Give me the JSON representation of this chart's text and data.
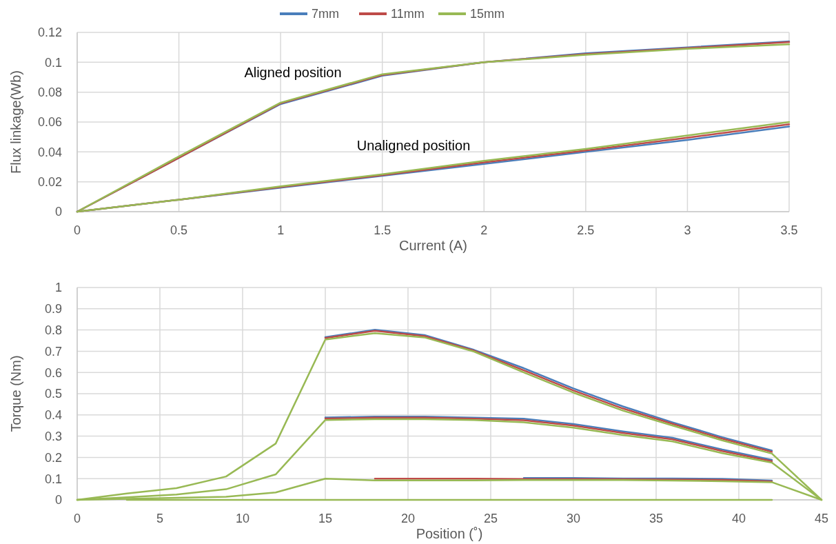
{
  "chart_data": [
    {
      "type": "line",
      "xlabel": "Current (A)",
      "ylabel": "Flux linkage(Wb)",
      "x": [
        0,
        0.5,
        1,
        1.5,
        2,
        2.5,
        3,
        3.5
      ],
      "xlim": [
        0,
        3.5
      ],
      "xticks": [
        0,
        0.5,
        1,
        1.5,
        2,
        2.5,
        3,
        3.5
      ],
      "ylim": [
        0,
        0.12
      ],
      "yticks": [
        0,
        0.02,
        0.04,
        0.06,
        0.08,
        0.1,
        0.12
      ],
      "grid": true,
      "legend": "top",
      "marker": "none",
      "line_style": "solid",
      "annotations": [
        "Aligned position",
        "Unaligned position"
      ],
      "series": [
        {
          "name": "7mm",
          "color": "#4a7ebb",
          "values": [
            0,
            0.036,
            0.072,
            0.091,
            0.1,
            0.106,
            0.11,
            0.114
          ]
        },
        {
          "name": "11mm",
          "color": "#be4b48",
          "values": [
            0,
            0.036,
            0.0725,
            0.0915,
            0.1,
            0.1055,
            0.1095,
            0.1135
          ]
        },
        {
          "name": "15mm",
          "color": "#98b954",
          "values": [
            0,
            0.037,
            0.073,
            0.092,
            0.1,
            0.105,
            0.109,
            0.112
          ]
        },
        {
          "color": "#4a7ebb",
          "values": [
            0,
            0.008,
            0.016,
            0.024,
            0.032,
            0.04,
            0.048,
            0.057
          ]
        },
        {
          "color": "#be4b48",
          "values": [
            0,
            0.008,
            0.0165,
            0.0245,
            0.033,
            0.041,
            0.0495,
            0.0585
          ]
        },
        {
          "color": "#98b954",
          "values": [
            0,
            0.008,
            0.017,
            0.025,
            0.034,
            0.042,
            0.051,
            0.06
          ]
        }
      ]
    },
    {
      "type": "line",
      "xlabel": "Position (˚)",
      "ylabel": "Torque (Nm)",
      "x": [
        0,
        3,
        6,
        9,
        12,
        15,
        18,
        21,
        24,
        27,
        30,
        33,
        36,
        39,
        42,
        45
      ],
      "xlim": [
        0,
        45
      ],
      "xticks": [
        0,
        5,
        10,
        15,
        20,
        25,
        30,
        35,
        40,
        45
      ],
      "ylim": [
        0,
        1
      ],
      "yticks": [
        0,
        0.1,
        0.2,
        0.3,
        0.4,
        0.5,
        0.6,
        0.7,
        0.8,
        0.9,
        1
      ],
      "grid": true,
      "marker": "none",
      "line_style": "solid",
      "series": [
        {
          "color": "#4a7ebb",
          "values": [
            null,
            null,
            null,
            null,
            null,
            0.766,
            0.801,
            0.776,
            0.706,
            0.62,
            0.525,
            0.44,
            0.365,
            0.295,
            0.232,
            null
          ]
        },
        {
          "color": "#be4b48",
          "values": [
            null,
            null,
            null,
            null,
            null,
            0.762,
            0.796,
            0.771,
            0.702,
            0.61,
            0.515,
            0.43,
            0.358,
            0.288,
            0.226,
            null
          ]
        },
        {
          "color": "#98b954",
          "values": [
            0,
            0.03,
            0.055,
            0.11,
            0.265,
            0.755,
            0.785,
            0.765,
            0.698,
            0.6,
            0.505,
            0.42,
            0.35,
            0.28,
            0.218,
            0
          ]
        },
        {
          "color": "#4a7ebb",
          "values": [
            null,
            null,
            null,
            null,
            null,
            0.388,
            0.392,
            0.392,
            0.387,
            0.382,
            0.357,
            0.322,
            0.292,
            0.237,
            0.188,
            null
          ]
        },
        {
          "color": "#be4b48",
          "values": [
            null,
            null,
            null,
            null,
            null,
            0.383,
            0.387,
            0.387,
            0.382,
            0.375,
            0.35,
            0.315,
            0.285,
            0.23,
            0.182,
            null
          ]
        },
        {
          "color": "#98b954",
          "values": [
            0,
            0.012,
            0.025,
            0.05,
            0.12,
            0.376,
            0.38,
            0.38,
            0.376,
            0.365,
            0.34,
            0.305,
            0.275,
            0.22,
            0.175,
            0
          ]
        },
        {
          "color": "#4a7ebb",
          "values": [
            null,
            null,
            null,
            null,
            null,
            null,
            null,
            null,
            null,
            0.103,
            0.103,
            0.101,
            0.101,
            0.099,
            0.091,
            null
          ]
        },
        {
          "color": "#be4b48",
          "values": [
            null,
            null,
            null,
            null,
            null,
            null,
            0.1,
            0.1,
            0.1,
            0.098,
            0.098,
            0.097,
            0.096,
            0.094,
            0.087,
            null
          ]
        },
        {
          "color": "#98b954",
          "values": [
            0,
            0.005,
            0.01,
            0.015,
            0.035,
            0.1,
            0.092,
            0.092,
            0.092,
            0.093,
            0.093,
            0.093,
            0.091,
            0.088,
            0.083,
            0
          ]
        },
        {
          "color": "#98b954",
          "values": [
            null,
            0,
            0,
            0,
            0,
            0,
            0,
            0,
            0,
            0,
            0,
            0,
            0,
            0,
            0,
            null
          ]
        }
      ]
    }
  ]
}
